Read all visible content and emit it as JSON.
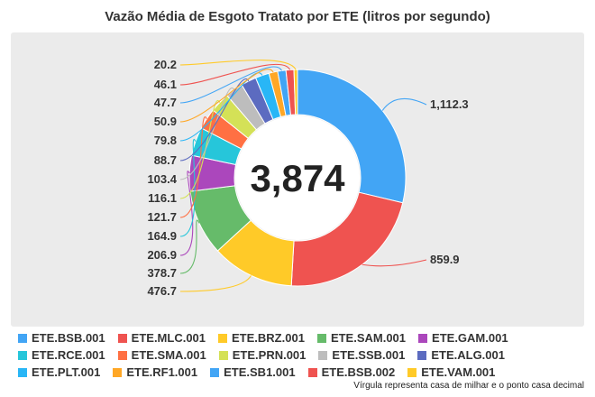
{
  "chart_data": {
    "type": "donut",
    "title": "Vazão Média de Esgoto Tratato por ETE (litros por segundo)",
    "center_label": "3,874",
    "series": [
      {
        "name": "ETE.BSB.001",
        "value": 1112.3,
        "label": "1,112.3",
        "color": "#42a5f5"
      },
      {
        "name": "ETE.MLC.001",
        "value": 859.9,
        "label": "859.9",
        "color": "#ef5350"
      },
      {
        "name": "ETE.BRZ.001",
        "value": 476.7,
        "label": "476.7",
        "color": "#ffca28"
      },
      {
        "name": "ETE.SAM.001",
        "value": 378.7,
        "label": "378.7",
        "color": "#66bb6a"
      },
      {
        "name": "ETE.GAM.001",
        "value": 206.9,
        "label": "206.9",
        "color": "#ab47bc"
      },
      {
        "name": "ETE.RCE.001",
        "value": 164.9,
        "label": "164.9",
        "color": "#26c6da"
      },
      {
        "name": "ETE.SMA.001",
        "value": 121.7,
        "label": "121.7",
        "color": "#ff7043"
      },
      {
        "name": "ETE.PRN.001",
        "value": 116.1,
        "label": "116.1",
        "color": "#d4e157"
      },
      {
        "name": "ETE.SSB.001",
        "value": 103.4,
        "label": "103.4",
        "color": "#bdbdbd"
      },
      {
        "name": "ETE.ALG.001",
        "value": 88.7,
        "label": "88.7",
        "color": "#5c6bc0"
      },
      {
        "name": "ETE.PLT.001",
        "value": 79.8,
        "label": "79.8",
        "color": "#29b6f6"
      },
      {
        "name": "ETE.RF1.001",
        "value": 50.9,
        "label": "50.9",
        "color": "#ffa726"
      },
      {
        "name": "ETE.SB1.001",
        "value": 47.7,
        "label": "47.7",
        "color": "#42a5f5"
      },
      {
        "name": "ETE.BSB.002",
        "value": 46.1,
        "label": "46.1",
        "color": "#ef5350"
      },
      {
        "name": "ETE.VAM.001",
        "value": 20.2,
        "label": "20.2",
        "color": "#ffca28"
      }
    ],
    "legend_position": "bottom"
  },
  "footnote": "Vírgula representa casa de milhar e o ponto casa decimal"
}
